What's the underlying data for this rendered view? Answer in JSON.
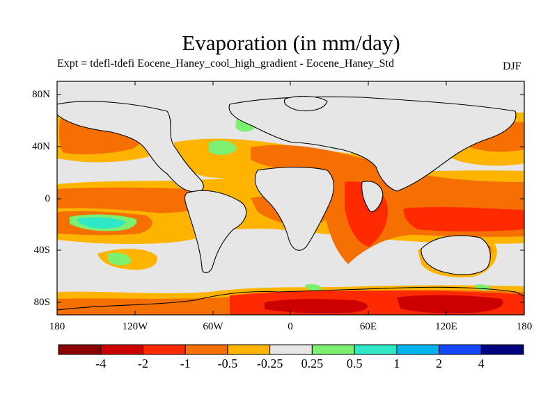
{
  "title": "Evaporation (in mm/day)",
  "subtitle": "Expt = tdefl-tdefi  Eocene_Haney_cool_high_gradient - Eocene_Haney_Std",
  "season": "DJF",
  "lat_labels": [
    "80N",
    "40N",
    "0",
    "40S",
    "80S"
  ],
  "lon_labels": [
    "180",
    "120W",
    "60W",
    "0",
    "60E",
    "120E",
    "180"
  ],
  "colorbar": {
    "colors": [
      "#8b0000",
      "#cc0000",
      "#ff2a00",
      "#f57000",
      "#ffb400",
      "#e6e6e6",
      "#7cf070",
      "#30e8c8",
      "#00b4f0",
      "#1448ff",
      "#00007f"
    ],
    "labels": [
      "-4",
      "-2",
      "-1",
      "-0.5",
      "-0.25",
      "0.25",
      "0.5",
      "1",
      "2",
      "4"
    ]
  }
}
